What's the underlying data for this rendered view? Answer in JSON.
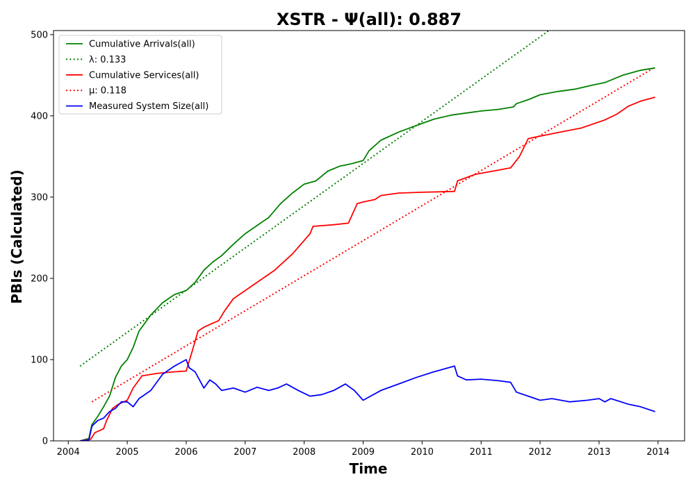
{
  "chart_data": {
    "type": "line",
    "title": "XSTR -  Ψ(all): 0.887",
    "xlabel": "Time",
    "ylabel": "PBIs (Calculated)",
    "xlim": [
      2003.75,
      2014.45
    ],
    "ylim": [
      0,
      505
    ],
    "xticks": [
      2004,
      2005,
      2006,
      2007,
      2008,
      2009,
      2010,
      2011,
      2012,
      2013,
      2014
    ],
    "yticks": [
      0,
      100,
      200,
      300,
      400,
      500
    ],
    "grid": false,
    "legend_position": "top-left",
    "series": [
      {
        "name": "Cumulative Arrivals(all)",
        "color": "#008000",
        "style": "solid",
        "x": [
          2004.2,
          2004.35,
          2004.4,
          2004.5,
          2004.6,
          2004.7,
          2004.8,
          2004.9,
          2005.0,
          2005.1,
          2005.2,
          2005.4,
          2005.6,
          2005.8,
          2006.0,
          2006.15,
          2006.3,
          2006.45,
          2006.6,
          2006.8,
          2007.0,
          2007.2,
          2007.4,
          2007.6,
          2007.8,
          2008.0,
          2008.2,
          2008.4,
          2008.6,
          2008.8,
          2009.0,
          2009.1,
          2009.3,
          2009.6,
          2009.9,
          2010.2,
          2010.5,
          2010.8,
          2011.0,
          2011.3,
          2011.55,
          2011.6,
          2011.8,
          2012.0,
          2012.3,
          2012.6,
          2012.9,
          2013.1,
          2013.4,
          2013.7,
          2013.95
        ],
        "values": [
          0,
          3,
          20,
          30,
          42,
          55,
          78,
          92,
          100,
          115,
          135,
          155,
          170,
          180,
          185,
          195,
          210,
          220,
          228,
          242,
          255,
          265,
          275,
          292,
          305,
          316,
          320,
          332,
          338,
          341,
          345,
          357,
          370,
          380,
          388,
          396,
          401,
          404,
          406,
          408,
          411,
          415,
          420,
          426,
          430,
          433,
          438,
          441,
          450,
          456,
          459
        ]
      },
      {
        "name": "λ: 0.133",
        "color": "#008000",
        "style": "dotted",
        "x": [
          2004.2,
          2012.15
        ],
        "values": [
          92,
          505
        ]
      },
      {
        "name": "Cumulative Services(all)",
        "color": "#ff0000",
        "style": "solid",
        "x": [
          2004.2,
          2004.38,
          2004.45,
          2004.6,
          2004.65,
          2004.75,
          2004.85,
          2005.0,
          2005.1,
          2005.25,
          2005.5,
          2005.8,
          2006.0,
          2006.1,
          2006.2,
          2006.3,
          2006.55,
          2006.65,
          2006.8,
          2007.0,
          2007.3,
          2007.5,
          2007.8,
          2008.1,
          2008.15,
          2008.5,
          2008.75,
          2008.9,
          2009.0,
          2009.2,
          2009.3,
          2009.6,
          2010.0,
          2010.55,
          2010.6,
          2010.9,
          2011.2,
          2011.5,
          2011.65,
          2011.8,
          2012.2,
          2012.7,
          2013.1,
          2013.3,
          2013.5,
          2013.7,
          2013.95
        ],
        "values": [
          0,
          2,
          10,
          15,
          25,
          40,
          45,
          50,
          65,
          80,
          83,
          85,
          86,
          110,
          135,
          140,
          148,
          160,
          175,
          185,
          200,
          210,
          230,
          255,
          264,
          266,
          268,
          292,
          294,
          297,
          302,
          305,
          306,
          307,
          320,
          328,
          332,
          336,
          350,
          372,
          378,
          385,
          395,
          402,
          412,
          418,
          423
        ]
      },
      {
        "name": "μ: 0.118",
        "color": "#ff0000",
        "style": "dotted",
        "x": [
          2004.4,
          2013.95
        ],
        "values": [
          48,
          460
        ]
      },
      {
        "name": "Measured System Size(all)",
        "color": "#0000ff",
        "style": "solid",
        "x": [
          2004.2,
          2004.35,
          2004.4,
          2004.5,
          2004.6,
          2004.7,
          2004.8,
          2004.9,
          2005.0,
          2005.1,
          2005.2,
          2005.4,
          2005.6,
          2005.8,
          2006.0,
          2006.05,
          2006.15,
          2006.3,
          2006.4,
          2006.5,
          2006.6,
          2006.8,
          2007.0,
          2007.2,
          2007.4,
          2007.55,
          2007.7,
          2007.9,
          2008.1,
          2008.3,
          2008.5,
          2008.7,
          2008.85,
          2009.0,
          2009.3,
          2009.6,
          2009.9,
          2010.2,
          2010.55,
          2010.6,
          2010.75,
          2011.0,
          2011.3,
          2011.5,
          2011.6,
          2011.8,
          2012.0,
          2012.2,
          2012.5,
          2012.8,
          2013.0,
          2013.1,
          2013.2,
          2013.5,
          2013.7,
          2013.95
        ],
        "values": [
          0,
          1,
          18,
          25,
          28,
          36,
          40,
          48,
          48,
          42,
          52,
          62,
          82,
          92,
          100,
          90,
          85,
          65,
          75,
          70,
          62,
          65,
          60,
          66,
          62,
          65,
          70,
          62,
          55,
          57,
          62,
          70,
          62,
          50,
          62,
          70,
          78,
          85,
          92,
          80,
          75,
          76,
          74,
          72,
          60,
          55,
          50,
          52,
          48,
          50,
          52,
          48,
          52,
          45,
          42,
          36
        ]
      }
    ]
  }
}
